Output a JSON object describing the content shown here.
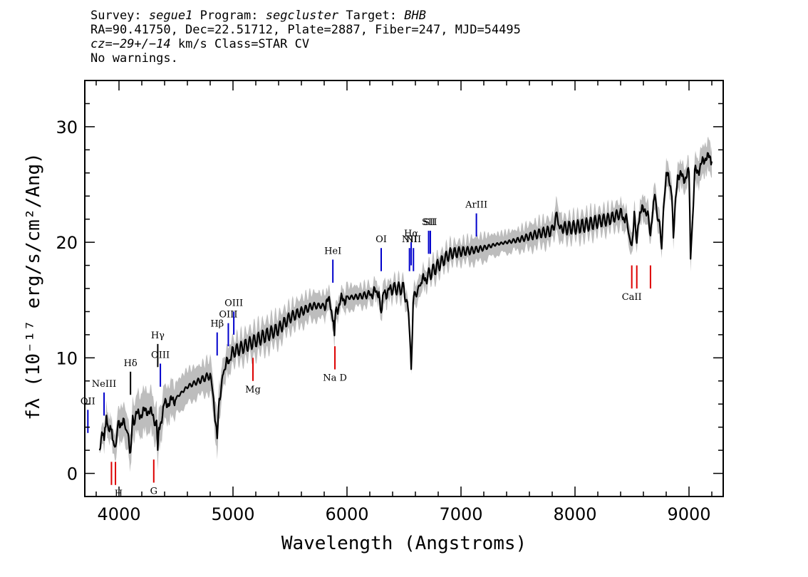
{
  "header": {
    "line1": {
      "survey_label": "Survey:",
      "survey": "segue1",
      "program_label": "Program:",
      "program": "segcluster",
      "target_label": "Target:",
      "target": "BHB"
    },
    "line2": "RA=90.41750, Dec=22.51712, Plate=2887, Fiber=247, MJD=54495",
    "line3": {
      "cz_label": "cz",
      "cz_value": "=−29+/−14",
      "rest": " km/s Class=STAR CV"
    },
    "line4": "No warnings."
  },
  "colors": {
    "flux": "#000000",
    "error_band": "#bdbdbd",
    "emission": "#0000cc",
    "absorption": "#dd0000"
  },
  "chart_data": {
    "type": "line",
    "xlabel": "Wavelength (Angstroms)",
    "ylabel": "fλ (10⁻¹⁷ erg/s/cm²/Ang)",
    "xlim": [
      3700,
      9300
    ],
    "ylim": [
      -2,
      34
    ],
    "x_ticks": [
      4000,
      5000,
      6000,
      7000,
      8000,
      9000
    ],
    "y_ticks": [
      0,
      10,
      20,
      30
    ],
    "series": [
      {
        "x": [
          3830,
          3850,
          3870,
          3890,
          3910,
          3930,
          3950,
          3970,
          4000,
          4050,
          4080,
          4101,
          4120,
          4150,
          4200,
          4250,
          4300,
          4330,
          4340,
          4350,
          4400,
          4450,
          4500,
          4600,
          4700,
          4800,
          4830,
          4861,
          4880,
          4920,
          5000,
          5100,
          5200,
          5300,
          5400,
          5500,
          5600,
          5700,
          5800,
          5850,
          5875,
          5890,
          5900,
          5950,
          6000,
          6100,
          6200,
          6280,
          6300,
          6320,
          6400,
          6500,
          6540,
          6563,
          6580,
          6650,
          6700,
          6800,
          6900,
          7000,
          7100,
          7200,
          7300,
          7400,
          7500,
          7600,
          7700,
          7800,
          7840,
          7860,
          7900,
          8000,
          8100,
          8200,
          8300,
          8400,
          8450,
          8498,
          8520,
          8542,
          8570,
          8620,
          8662,
          8700,
          8760,
          8800,
          8850,
          8863,
          8900,
          8950,
          9000,
          9014,
          9050,
          9100,
          9150,
          9200
        ],
        "y": [
          2.0,
          3.5,
          2.8,
          4.5,
          3.5,
          4.2,
          3.0,
          2.5,
          4.5,
          4.2,
          3.5,
          1.5,
          4.5,
          5.0,
          5.2,
          5.5,
          5.0,
          4.0,
          2.5,
          3.8,
          6.0,
          6.2,
          6.5,
          7.5,
          8.0,
          8.5,
          6.5,
          2.8,
          6.5,
          9.0,
          10.5,
          11.0,
          11.5,
          12.0,
          12.5,
          13.5,
          14.0,
          14.5,
          14.5,
          15.0,
          13.5,
          12.0,
          14.0,
          15.0,
          15.2,
          15.3,
          15.5,
          15.8,
          13.5,
          15.5,
          16.0,
          16.0,
          14.0,
          9.0,
          15.0,
          16.5,
          17.0,
          18.0,
          19.0,
          19.2,
          19.3,
          19.5,
          19.8,
          20.0,
          20.2,
          20.5,
          20.8,
          21.0,
          22.5,
          21.5,
          21.2,
          21.3,
          21.5,
          21.8,
          22.0,
          22.5,
          22.0,
          19.5,
          22.5,
          20.0,
          22.5,
          23.0,
          21.0,
          24.0,
          20.0,
          26.0,
          24.5,
          20.5,
          26.0,
          25.5,
          26.0,
          18.5,
          26.0,
          26.5,
          27.5,
          27.0
        ],
        "error_band": [
          0.0,
          0.6,
          0.7,
          0.8,
          0.8,
          0.7,
          0.7,
          0.8,
          1.2,
          1.2,
          1.3,
          1.1,
          1.2,
          1.3,
          1.6,
          1.5,
          1.5,
          1.3,
          1.3,
          1.4,
          1.2,
          1.3,
          1.1,
          1.2,
          1.0,
          1.2,
          1.2,
          1.5,
          1.2,
          1.0,
          0.8,
          0.9,
          1.0,
          1.0,
          1.0,
          0.8,
          0.9,
          0.9,
          0.8,
          0.6,
          0.6,
          0.8,
          0.6,
          0.4,
          0.8,
          0.6,
          0.6,
          0.4,
          0.6,
          0.6,
          0.6,
          0.5,
          0.4,
          0.4,
          0.6,
          0.6,
          0.6,
          0.6,
          0.6,
          0.6,
          0.8,
          0.8,
          0.6,
          0.6,
          0.6,
          0.8,
          0.8,
          0.8,
          1.0,
          1.0,
          0.7,
          0.7,
          0.8,
          0.7,
          0.7,
          0.8,
          0.8,
          0.6,
          0.7,
          0.6,
          0.7,
          0.8,
          0.6,
          0.8,
          0.6,
          0.8,
          0.8,
          0.6,
          0.8,
          0.8,
          0.7,
          0.6,
          0.8,
          1.0,
          1.0,
          1.0
        ]
      }
    ],
    "annotations": [
      {
        "label": "OII",
        "x": 3727,
        "y_top": 3.5,
        "y_bottom": 5.5,
        "kind": "emission"
      },
      {
        "label": "NeIII",
        "x": 3869,
        "y_top": 5.0,
        "y_bottom": 7.0,
        "kind": "emission"
      },
      {
        "label": "Hδ",
        "x": 4101,
        "y_top": 6.8,
        "y_bottom": 8.8,
        "kind": "balmer"
      },
      {
        "label": "Hγ",
        "x": 4340,
        "y_top": 9.2,
        "y_bottom": 11.2,
        "kind": "balmer"
      },
      {
        "label": "OIII",
        "x": 4363,
        "y_top": 7.5,
        "y_bottom": 9.5,
        "kind": "emission"
      },
      {
        "label": "Hβ",
        "x": 4861,
        "y_top": 10.2,
        "y_bottom": 12.2,
        "kind": "emission"
      },
      {
        "label": "OIII",
        "x": 4959,
        "y_top": 11.0,
        "y_bottom": 13.0,
        "kind": "emission"
      },
      {
        "label": "OIII",
        "x": 5007,
        "y_top": 12.0,
        "y_bottom": 14.0,
        "kind": "emission"
      },
      {
        "label": "HeI",
        "x": 5876,
        "y_top": 16.5,
        "y_bottom": 18.5,
        "kind": "emission"
      },
      {
        "label": "OI",
        "x": 6300,
        "y_top": 17.5,
        "y_bottom": 19.5,
        "kind": "emission"
      },
      {
        "label": "NII",
        "x": 6548,
        "y_top": 17.5,
        "y_bottom": 19.5,
        "kind": "emission"
      },
      {
        "label": "Hα",
        "x": 6563,
        "y_top": 18.0,
        "y_bottom": 20.0,
        "kind": "emission"
      },
      {
        "label": "NII",
        "x": 6583,
        "y_top": 17.5,
        "y_bottom": 19.5,
        "kind": "emission"
      },
      {
        "label": "SII",
        "x": 6716,
        "y_top": 19.0,
        "y_bottom": 21.0,
        "kind": "emission"
      },
      {
        "label": "SII",
        "x": 6731,
        "y_top": 19.0,
        "y_bottom": 21.0,
        "kind": "emission"
      },
      {
        "label": "ArIII",
        "x": 7135,
        "y_top": 20.5,
        "y_bottom": 22.5,
        "kind": "emission"
      },
      {
        "label": "H",
        "x": 3934,
        "y_top": -1.0,
        "y_bottom": 1.0,
        "kind": "absorption"
      },
      {
        "label": "",
        "x": 3969,
        "y_top": -1.0,
        "y_bottom": 1.0,
        "kind": "absorption"
      },
      {
        "label": "G",
        "x": 4305,
        "y_top": 1.2,
        "y_bottom": -0.8,
        "kind": "absorption"
      },
      {
        "label": "Mg",
        "x": 5175,
        "y_top": 8.0,
        "y_bottom": 10.0,
        "kind": "absorption"
      },
      {
        "label": "Na D",
        "x": 5894,
        "y_top": 9.0,
        "y_bottom": 11.0,
        "kind": "absorption"
      },
      {
        "label": "CaII",
        "x": 8498,
        "y_top": 16.0,
        "y_bottom": 18.0,
        "kind": "absorption"
      },
      {
        "label": "",
        "x": 8542,
        "y_top": 16.0,
        "y_bottom": 18.0,
        "kind": "absorption"
      },
      {
        "label": "",
        "x": 8662,
        "y_top": 16.0,
        "y_bottom": 18.0,
        "kind": "absorption"
      }
    ]
  }
}
